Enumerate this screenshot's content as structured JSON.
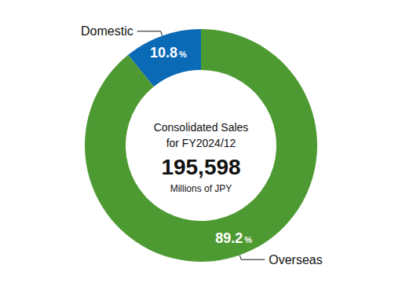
{
  "chart_data": {
    "type": "pie",
    "annotations": [
      "Consolidated Sales",
      "for FY2024/12",
      "195,598",
      "Millions of JPY"
    ],
    "categories": [
      "Domestic",
      "Overseas"
    ],
    "values": [
      10.8,
      89.2
    ],
    "value_labels": [
      "10.8%",
      "89.2%"
    ],
    "colors": [
      "#0a6ab6",
      "#4e9a32"
    ],
    "data_labels": true
  }
}
